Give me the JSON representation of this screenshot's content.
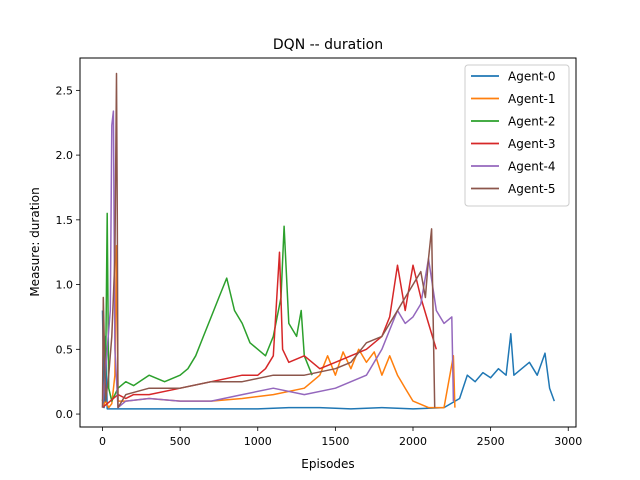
{
  "chart_data": {
    "type": "line",
    "title": "DQN -- duration",
    "xlabel": "Episodes",
    "ylabel": "Measure: duration",
    "xlim": [
      -145,
      3050
    ],
    "ylim": [
      -0.1,
      2.75
    ],
    "xticks": [
      0,
      500,
      1000,
      1500,
      2000,
      2500,
      3000
    ],
    "yticks": [
      0.0,
      0.5,
      1.0,
      1.5,
      2.0,
      2.5
    ],
    "xtick_labels": [
      "0",
      "500",
      "1000",
      "1500",
      "2000",
      "2500",
      "3000"
    ],
    "ytick_labels": [
      "0.0",
      "0.5",
      "1.0",
      "1.5",
      "2.0",
      "2.5"
    ],
    "grid": false,
    "legend_position": "top-right",
    "series": [
      {
        "name": "Agent-0",
        "color": "#1f77b4",
        "x": [
          0,
          10,
          20,
          30,
          50,
          100,
          200,
          400,
          600,
          800,
          1000,
          1200,
          1400,
          1600,
          1800,
          2000,
          2200,
          2300,
          2350,
          2400,
          2450,
          2500,
          2550,
          2600,
          2630,
          2650,
          2700,
          2750,
          2800,
          2850,
          2880,
          2910
        ],
        "y": [
          0.8,
          0.05,
          0.6,
          0.04,
          0.04,
          0.04,
          0.04,
          0.04,
          0.04,
          0.04,
          0.04,
          0.05,
          0.05,
          0.04,
          0.05,
          0.04,
          0.05,
          0.12,
          0.3,
          0.25,
          0.32,
          0.28,
          0.35,
          0.3,
          0.62,
          0.3,
          0.35,
          0.4,
          0.3,
          0.47,
          0.2,
          0.1
        ]
      },
      {
        "name": "Agent-1",
        "color": "#ff7f0e",
        "x": [
          0,
          20,
          40,
          60,
          80,
          90,
          100,
          150,
          300,
          500,
          700,
          900,
          1100,
          1300,
          1400,
          1450,
          1500,
          1550,
          1600,
          1650,
          1700,
          1750,
          1800,
          1850,
          1900,
          1950,
          2000,
          2100,
          2200,
          2260,
          2270
        ],
        "y": [
          0.05,
          0.1,
          0.05,
          0.08,
          0.3,
          1.3,
          0.1,
          0.1,
          0.12,
          0.1,
          0.1,
          0.12,
          0.15,
          0.2,
          0.3,
          0.45,
          0.3,
          0.48,
          0.35,
          0.5,
          0.4,
          0.48,
          0.3,
          0.45,
          0.3,
          0.2,
          0.1,
          0.05,
          0.05,
          0.45,
          0.05
        ]
      },
      {
        "name": "Agent-2",
        "color": "#2ca02c",
        "x": [
          0,
          20,
          30,
          40,
          60,
          100,
          150,
          200,
          300,
          400,
          500,
          550,
          600,
          650,
          700,
          750,
          800,
          850,
          900,
          950,
          1000,
          1050,
          1100,
          1150,
          1170,
          1200,
          1250,
          1280,
          1300,
          1350
        ],
        "y": [
          0.1,
          0.3,
          1.55,
          0.2,
          0.1,
          0.2,
          0.25,
          0.22,
          0.3,
          0.25,
          0.3,
          0.35,
          0.45,
          0.6,
          0.75,
          0.9,
          1.05,
          0.8,
          0.7,
          0.55,
          0.5,
          0.45,
          0.6,
          0.9,
          1.45,
          0.7,
          0.6,
          0.8,
          0.45,
          0.3
        ]
      },
      {
        "name": "Agent-3",
        "color": "#d62728",
        "x": [
          0,
          50,
          100,
          150,
          200,
          300,
          500,
          700,
          900,
          1000,
          1050,
          1100,
          1140,
          1160,
          1200,
          1300,
          1400,
          1500,
          1600,
          1700,
          1800,
          1850,
          1900,
          1950,
          2000,
          2050,
          2100,
          2150
        ],
        "y": [
          0.05,
          0.1,
          0.15,
          0.12,
          0.15,
          0.15,
          0.2,
          0.25,
          0.3,
          0.3,
          0.35,
          0.45,
          1.25,
          0.5,
          0.4,
          0.45,
          0.35,
          0.4,
          0.45,
          0.5,
          0.6,
          0.75,
          1.15,
          0.8,
          1.15,
          0.9,
          0.7,
          0.5
        ]
      },
      {
        "name": "Agent-4",
        "color": "#9467bd",
        "x": [
          0,
          30,
          50,
          60,
          70,
          80,
          100,
          150,
          300,
          500,
          700,
          900,
          1100,
          1300,
          1500,
          1700,
          1800,
          1850,
          1900,
          1950,
          2000,
          2050,
          2100,
          2150,
          2200,
          2250,
          2260
        ],
        "y": [
          0.05,
          0.5,
          0.8,
          2.23,
          2.34,
          0.5,
          0.05,
          0.1,
          0.12,
          0.1,
          0.1,
          0.15,
          0.2,
          0.15,
          0.2,
          0.3,
          0.5,
          0.65,
          0.8,
          0.7,
          0.75,
          0.85,
          1.2,
          0.8,
          0.7,
          0.75,
          0.1
        ]
      },
      {
        "name": "Agent-5",
        "color": "#8c564b",
        "x": [
          0,
          5,
          20,
          40,
          60,
          80,
          90,
          95,
          100,
          150,
          300,
          500,
          700,
          900,
          1100,
          1300,
          1500,
          1600,
          1700,
          1800,
          1850,
          1900,
          1950,
          2000,
          2050,
          2080,
          2100,
          2120,
          2140
        ],
        "y": [
          0.05,
          0.9,
          0.1,
          0.3,
          0.6,
          1.2,
          2.63,
          1.5,
          0.05,
          0.15,
          0.2,
          0.2,
          0.25,
          0.25,
          0.3,
          0.3,
          0.35,
          0.4,
          0.55,
          0.6,
          0.7,
          0.8,
          0.9,
          1.0,
          1.1,
          0.9,
          1.2,
          1.43,
          0.05
        ]
      }
    ]
  }
}
